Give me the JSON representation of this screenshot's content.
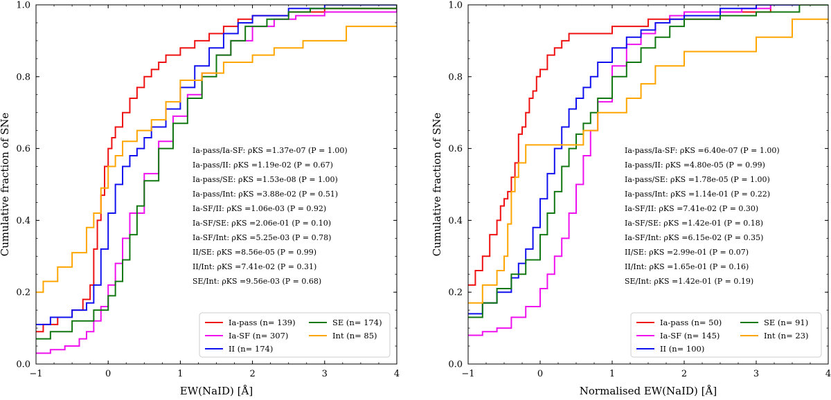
{
  "chart_data": [
    {
      "type": "line",
      "title": "",
      "xlabel": "EW(NaID) [Å]",
      "ylabel": "Cumulative fraction of SNe",
      "xlim": [
        -1,
        4
      ],
      "ylim": [
        0,
        1
      ],
      "xticks": [
        "−1",
        "0",
        "1",
        "2",
        "3",
        "4"
      ],
      "yticks": [
        "0.0",
        "0.2",
        "0.4",
        "0.6",
        "0.8",
        "1.0"
      ],
      "series": [
        {
          "name": "Ia-pass",
          "legend": "Ia-pass (n= 139)",
          "color": "#ee1111",
          "x": [
            -1,
            -0.9,
            -0.7,
            -0.5,
            -0.35,
            -0.25,
            -0.2,
            -0.15,
            -0.1,
            -0.05,
            0,
            0.05,
            0.1,
            0.2,
            0.3,
            0.4,
            0.5,
            0.6,
            0.7,
            0.8,
            1,
            1.2,
            1.4,
            1.6,
            1.8,
            2,
            2.5,
            3,
            4
          ],
          "y": [
            0.09,
            0.11,
            0.13,
            0.15,
            0.18,
            0.22,
            0.32,
            0.4,
            0.47,
            0.55,
            0.6,
            0.63,
            0.66,
            0.7,
            0.74,
            0.77,
            0.8,
            0.82,
            0.84,
            0.86,
            0.88,
            0.9,
            0.92,
            0.94,
            0.96,
            0.97,
            0.98,
            0.99,
            0.99
          ]
        },
        {
          "name": "Ia-SF",
          "legend": "Ia-SF (n= 307)",
          "color": "#ee11ee",
          "x": [
            -1,
            -0.8,
            -0.6,
            -0.4,
            -0.3,
            -0.2,
            -0.1,
            0,
            0.1,
            0.2,
            0.3,
            0.5,
            0.7,
            0.9,
            1.1,
            1.3,
            1.5,
            1.7,
            2,
            2.3,
            2.6,
            3,
            4
          ],
          "y": [
            0.03,
            0.04,
            0.05,
            0.07,
            0.09,
            0.12,
            0.16,
            0.22,
            0.28,
            0.35,
            0.42,
            0.53,
            0.62,
            0.69,
            0.75,
            0.81,
            0.86,
            0.9,
            0.94,
            0.96,
            0.97,
            0.98,
            0.99
          ]
        },
        {
          "name": "II",
          "legend": "II (n= 174)",
          "color": "#1111ee",
          "x": [
            -1,
            -0.8,
            -0.5,
            -0.3,
            -0.2,
            -0.1,
            0,
            0.1,
            0.2,
            0.3,
            0.4,
            0.5,
            0.6,
            0.8,
            1,
            1.2,
            1.4,
            1.6,
            1.8,
            2,
            2.5,
            3,
            4
          ],
          "y": [
            0.11,
            0.13,
            0.15,
            0.17,
            0.22,
            0.32,
            0.42,
            0.5,
            0.55,
            0.58,
            0.6,
            0.63,
            0.66,
            0.71,
            0.77,
            0.83,
            0.88,
            0.92,
            0.95,
            0.97,
            0.99,
            1.0,
            1.0
          ]
        },
        {
          "name": "SE",
          "legend": "SE (n= 174)",
          "color": "#117711",
          "x": [
            -1,
            -0.8,
            -0.5,
            -0.2,
            0,
            0.1,
            0.2,
            0.3,
            0.4,
            0.5,
            0.7,
            0.9,
            1.1,
            1.3,
            1.5,
            1.7,
            1.9,
            2.2,
            2.5,
            2.8,
            3.2,
            4
          ],
          "y": [
            0.07,
            0.09,
            0.12,
            0.15,
            0.19,
            0.23,
            0.29,
            0.36,
            0.44,
            0.51,
            0.6,
            0.67,
            0.74,
            0.8,
            0.86,
            0.9,
            0.94,
            0.96,
            0.98,
            0.99,
            0.99,
            1.0
          ]
        },
        {
          "name": "Int",
          "legend": "Int (n= 85)",
          "color": "#ffa500",
          "x": [
            -1,
            -0.9,
            -0.7,
            -0.5,
            -0.3,
            -0.2,
            -0.1,
            0,
            0.1,
            0.2,
            0.4,
            0.6,
            0.8,
            1,
            1.3,
            1.6,
            2,
            2.3,
            2.7,
            3.3,
            4
          ],
          "y": [
            0.2,
            0.23,
            0.27,
            0.31,
            0.38,
            0.42,
            0.49,
            0.55,
            0.58,
            0.62,
            0.65,
            0.68,
            0.73,
            0.79,
            0.81,
            0.84,
            0.86,
            0.88,
            0.9,
            0.94,
            0.94
          ]
        }
      ],
      "annotations": [
        "Ia-pass/Ia-SF: ρKS =1.37e-07 (P = 1.00)",
        "Ia-pass/II: ρKS =1.19e-02  (P = 0.67)",
        "Ia-pass/SE: ρKS =1.53e-08  (P = 1.00)",
        "Ia-pass/Int: ρKS =3.88e-02  (P = 0.51)",
        "Ia-SF/II: ρKS =1.06e-03  (P = 0.92)",
        "Ia-SF/SE: ρKS =2.06e-01  (P = 0.10)",
        "Ia-SF/Int: ρKS =5.25e-03  (P = 0.78)",
        "II/SE: ρKS =8.56e-05  (P = 0.99)",
        "II/Int: ρKS =7.41e-02 (P = 0.31)",
        "SE/Int: ρKS =9.56e-03  (P = 0.68)"
      ],
      "legend_position": "lower-right"
    },
    {
      "type": "line",
      "title": "",
      "xlabel": "Normalised EW(NaID) [Å]",
      "ylabel": "Cumulative fraction of SNe",
      "xlim": [
        -1,
        4
      ],
      "ylim": [
        0,
        1
      ],
      "xticks": [
        "−1",
        "0",
        "1",
        "2",
        "3",
        "4"
      ],
      "yticks": [
        "0.0",
        "0.2",
        "0.4",
        "0.6",
        "0.8",
        "1.0"
      ],
      "series": [
        {
          "name": "Ia-pass",
          "legend": "Ia-pass (n= 50)",
          "color": "#ee1111",
          "x": [
            -1,
            -0.9,
            -0.8,
            -0.7,
            -0.6,
            -0.55,
            -0.5,
            -0.45,
            -0.4,
            -0.35,
            -0.3,
            -0.25,
            -0.2,
            -0.15,
            -0.1,
            -0.05,
            0,
            0.1,
            0.2,
            0.3,
            0.4,
            0.6,
            0.8,
            1,
            1.2,
            1.5,
            2,
            2.5,
            3.2,
            4
          ],
          "y": [
            0.22,
            0.26,
            0.3,
            0.36,
            0.4,
            0.44,
            0.46,
            0.48,
            0.52,
            0.56,
            0.64,
            0.66,
            0.7,
            0.74,
            0.76,
            0.8,
            0.82,
            0.86,
            0.88,
            0.9,
            0.92,
            0.92,
            0.92,
            0.94,
            0.94,
            0.96,
            0.96,
            0.98,
            1.0,
            1.0
          ]
        },
        {
          "name": "Ia-SF",
          "legend": "Ia-SF (n= 145)",
          "color": "#ee11ee",
          "x": [
            -1,
            -0.8,
            -0.6,
            -0.4,
            -0.2,
            0,
            0.1,
            0.2,
            0.3,
            0.4,
            0.5,
            0.6,
            0.7,
            0.8,
            1,
            1.2,
            1.4,
            1.6,
            1.8,
            2,
            2.4,
            2.8,
            3.2,
            4
          ],
          "y": [
            0.08,
            0.09,
            0.1,
            0.13,
            0.16,
            0.21,
            0.25,
            0.3,
            0.35,
            0.42,
            0.5,
            0.58,
            0.65,
            0.73,
            0.83,
            0.89,
            0.92,
            0.95,
            0.97,
            0.98,
            0.98,
            0.99,
            1.0,
            1.0
          ]
        },
        {
          "name": "II",
          "legend": "II (n= 100)",
          "color": "#1111ee",
          "x": [
            -1,
            -0.8,
            -0.6,
            -0.4,
            -0.3,
            -0.2,
            -0.1,
            0,
            0.1,
            0.2,
            0.3,
            0.4,
            0.5,
            0.6,
            0.7,
            0.8,
            1,
            1.2,
            1.4,
            1.6,
            1.8,
            2,
            2.5,
            3,
            4
          ],
          "y": [
            0.14,
            0.17,
            0.2,
            0.24,
            0.28,
            0.32,
            0.38,
            0.46,
            0.53,
            0.6,
            0.66,
            0.71,
            0.74,
            0.77,
            0.8,
            0.84,
            0.88,
            0.91,
            0.93,
            0.95,
            0.96,
            0.97,
            0.99,
            1.0,
            1.0
          ]
        },
        {
          "name": "SE",
          "legend": "SE (n= 91)",
          "color": "#117711",
          "x": [
            -1,
            -0.8,
            -0.6,
            -0.4,
            -0.2,
            0,
            0.1,
            0.2,
            0.3,
            0.4,
            0.5,
            0.6,
            0.7,
            0.8,
            1,
            1.2,
            1.4,
            1.6,
            1.8,
            2,
            2.5,
            3,
            3.6,
            4
          ],
          "y": [
            0.13,
            0.17,
            0.21,
            0.25,
            0.29,
            0.36,
            0.42,
            0.48,
            0.55,
            0.6,
            0.64,
            0.67,
            0.7,
            0.74,
            0.8,
            0.84,
            0.88,
            0.91,
            0.94,
            0.96,
            0.97,
            0.98,
            1.0,
            1.0
          ]
        },
        {
          "name": "Int",
          "legend": "Int (n= 23)",
          "color": "#ffa500",
          "x": [
            -1,
            -0.8,
            -0.6,
            -0.5,
            -0.45,
            -0.4,
            -0.35,
            -0.3,
            -0.2,
            -0.1,
            0,
            0.3,
            0.6,
            0.8,
            1,
            1.2,
            1.4,
            1.6,
            2,
            2.3,
            2.5,
            3,
            3.5,
            4
          ],
          "y": [
            0.17,
            0.22,
            0.26,
            0.3,
            0.39,
            0.48,
            0.52,
            0.56,
            0.61,
            0.61,
            0.61,
            0.61,
            0.65,
            0.7,
            0.7,
            0.74,
            0.78,
            0.83,
            0.87,
            0.87,
            0.87,
            0.91,
            0.96,
            0.96
          ]
        }
      ],
      "annotations": [
        "Ia-pass/Ia-SF: ρKS =6.40e-07 (P = 1.00)",
        "Ia-pass/II: ρKS =4.80e-05  (P = 0.99)",
        "Ia-pass/SE: ρKS =1.78e-05  (P = 1.00)",
        "Ia-pass/Int: ρKS =1.14e-01  (P = 0.22)",
        "Ia-SF/II: ρKS =7.41e-02  (P = 0.30)",
        "Ia-SF/SE: ρKS =1.42e-01  (P = 0.18)",
        "Ia-SF/Int: ρKS =6.15e-02  (P = 0.35)",
        "II/SE: ρKS =2.99e-01  (P = 0.07)",
        "II/Int: ρKS =1.65e-01  (P = 0.16)",
        "SE/Int: ρKS =1.42e-01  (P = 0.19)"
      ],
      "legend_position": "lower-right"
    }
  ]
}
